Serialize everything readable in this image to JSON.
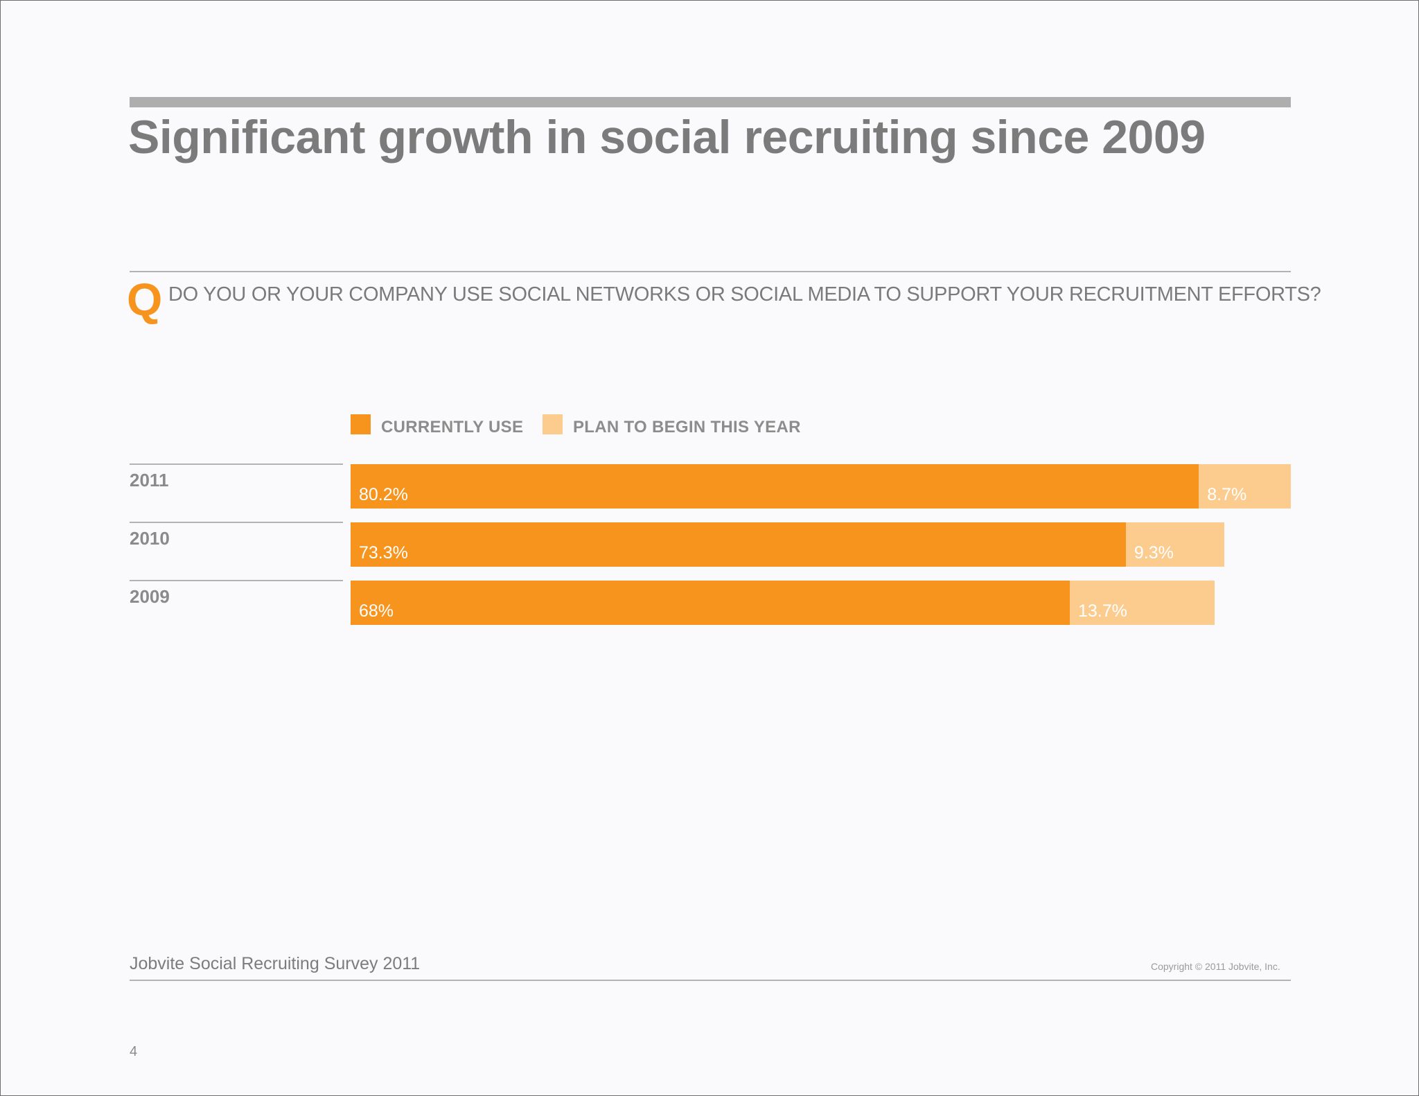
{
  "slide": {
    "title": "Significant growth in social recruiting since 2009",
    "question_marker": "Q",
    "question": "DO YOU OR YOUR COMPANY USE SOCIAL NETWORKS OR SOCIAL MEDIA TO SUPPORT YOUR RECRUITMENT EFFORTS?",
    "footer_left": "Jobvite Social Recruiting Survey 2011",
    "footer_right": "Copyright © 2011 Jobvite, Inc.",
    "page_number": "4"
  },
  "chart_data": {
    "type": "bar",
    "orientation": "horizontal",
    "stacked": true,
    "categories": [
      "2011",
      "2010",
      "2009"
    ],
    "series": [
      {
        "name": "CURRENTLY USE",
        "values": [
          80.2,
          73.3,
          68
        ],
        "labels": [
          "80.2%",
          "73.3%",
          "68%"
        ],
        "color": "#f7941d"
      },
      {
        "name": "PLAN TO BEGIN THIS YEAR",
        "values": [
          8.7,
          9.3,
          13.7
        ],
        "labels": [
          "8.7%",
          "9.3%",
          "13.7%"
        ],
        "color": "#fccc8f"
      }
    ],
    "xlim": [
      0,
      88.9
    ],
    "legend_position": "top-left",
    "grid": false
  }
}
